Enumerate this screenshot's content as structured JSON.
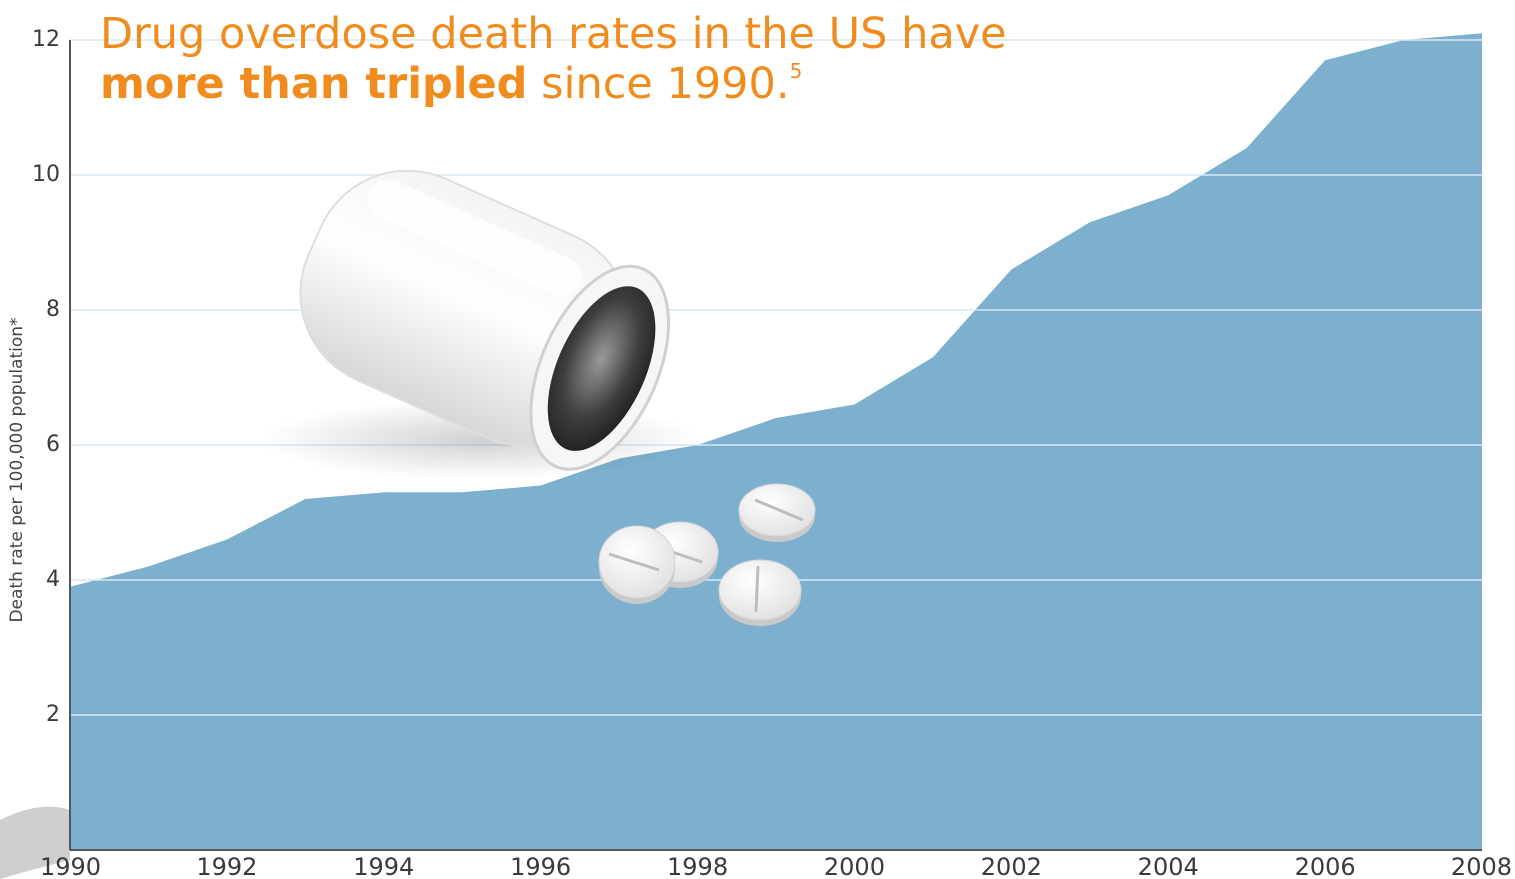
{
  "title": {
    "line1": "Drug overdose death rates in the US have",
    "line2_bold": "more than tripled",
    "line2_rest": " since 1990.",
    "footnote": "5"
  },
  "colors": {
    "area": "#7db0cf",
    "title": "#f08c1e",
    "grid": "#d8e8f2",
    "axis": "#555555"
  },
  "chart_data": {
    "type": "area",
    "ylabel": "Death rate per 100,000 population*",
    "xlabel": "",
    "xlim": [
      1990,
      2008
    ],
    "ylim": [
      0,
      12
    ],
    "x_ticks": [
      "1990",
      "1992",
      "1994",
      "1996",
      "1998",
      "2000",
      "2002",
      "2004",
      "2006",
      "2008"
    ],
    "y_ticks": [
      "2",
      "4",
      "6",
      "8",
      "10",
      "12"
    ],
    "grid": "horizontal",
    "series": [
      {
        "x": [
          1990,
          1991,
          1992,
          1993,
          1994,
          1995,
          1996,
          1997,
          1998,
          1999,
          2000,
          2001,
          2002,
          2003,
          2004,
          2005,
          2006,
          2007,
          2008
        ],
        "values": [
          3.9,
          4.2,
          4.6,
          5.2,
          5.3,
          5.3,
          5.4,
          5.8,
          6.0,
          6.4,
          6.6,
          7.3,
          8.6,
          9.3,
          9.7,
          10.4,
          11.7,
          12.0,
          12.1
        ]
      }
    ]
  }
}
